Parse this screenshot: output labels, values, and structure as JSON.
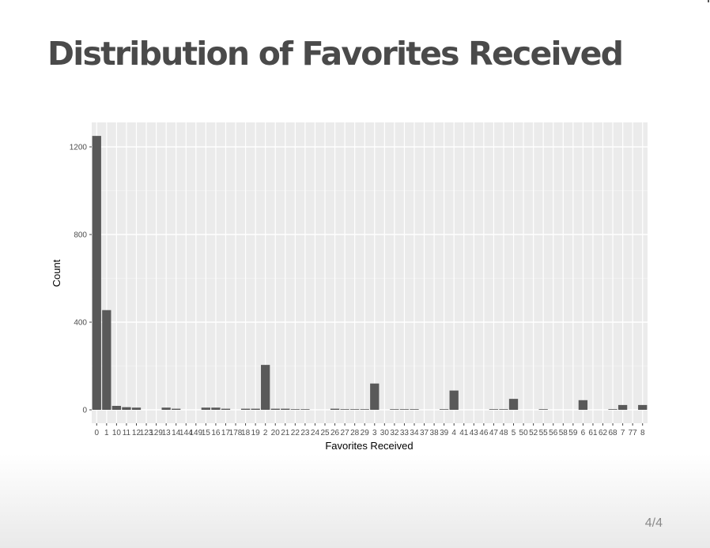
{
  "slide": {
    "title": "Distribution of Favorites Received",
    "page_number": "4/4"
  },
  "chart_data": {
    "type": "bar",
    "title": "",
    "xlabel": "Favorites Received",
    "ylabel": "Count",
    "ylim": [
      -60,
      1300
    ],
    "yticks": [
      0,
      400,
      800,
      1200
    ],
    "grid": true,
    "bar_color": "#595959",
    "panel_color": "#ebebeb",
    "categories": [
      "0",
      "1",
      "10",
      "11",
      "12",
      "123",
      "129",
      "13",
      "14",
      "144",
      "149",
      "15",
      "16",
      "17",
      "178",
      "18",
      "19",
      "2",
      "20",
      "21",
      "22",
      "23",
      "24",
      "25",
      "26",
      "27",
      "28",
      "29",
      "3",
      "30",
      "32",
      "33",
      "34",
      "37",
      "38",
      "39",
      "4",
      "41",
      "43",
      "46",
      "47",
      "48",
      "5",
      "50",
      "52",
      "55",
      "56",
      "58",
      "59",
      "6",
      "61",
      "62",
      "68",
      "7",
      "77",
      "8"
    ],
    "values": [
      1250,
      455,
      18,
      12,
      10,
      0,
      0,
      10,
      5,
      0,
      0,
      10,
      10,
      5,
      0,
      5,
      5,
      205,
      5,
      5,
      2,
      2,
      0,
      0,
      5,
      2,
      2,
      2,
      120,
      0,
      2,
      2,
      2,
      0,
      0,
      2,
      88,
      0,
      0,
      0,
      2,
      2,
      50,
      0,
      0,
      2,
      0,
      0,
      0,
      44,
      0,
      0,
      2,
      22,
      0,
      22
    ]
  }
}
